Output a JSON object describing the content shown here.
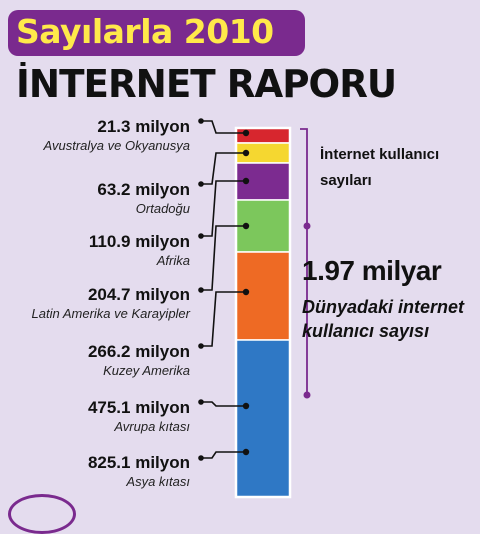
{
  "header": {
    "title": "Sayılarla 2010",
    "subtitle": "İNTERNET RAPORU"
  },
  "side_note": "İnternet kullanıcı sayıları",
  "total": {
    "value": "1.97 milyar",
    "label": "Dünyadaki internet kullanıcı sayısı"
  },
  "chart_data": {
    "type": "bar",
    "stacked": true,
    "title": "Sayılarla 2010",
    "subtitle": "İNTERNET RAPORU",
    "unit": "milyon",
    "series": [
      {
        "region": "Avustralya ve Okyanusya",
        "label": "21.3 milyon",
        "value": 21.3,
        "color": "#d7262e"
      },
      {
        "region": "Ortadoğu",
        "label": "63.2 milyon",
        "value": 63.2,
        "color": "#f5d730"
      },
      {
        "region": "Afrika",
        "label": "110.9 milyon",
        "value": 110.9,
        "color": "#7c2b90"
      },
      {
        "region": "Latin Amerika ve Karayipler",
        "label": "204.7 milyon",
        "value": 204.7,
        "color": "#7cc75c"
      },
      {
        "region": "Kuzey Amerika",
        "label": "266.2 milyon",
        "value": 266.2,
        "color": "#ee6a24"
      },
      {
        "region": "Avrupa kıtası",
        "label": "475.1 milyon",
        "value": 475.1,
        "color": "#2f78c5"
      },
      {
        "region": "Asya kıtası",
        "label": "825.1 milyon",
        "value": 825.1,
        "color": "#2f78c5"
      }
    ],
    "total_label": "1.97 milyar"
  }
}
